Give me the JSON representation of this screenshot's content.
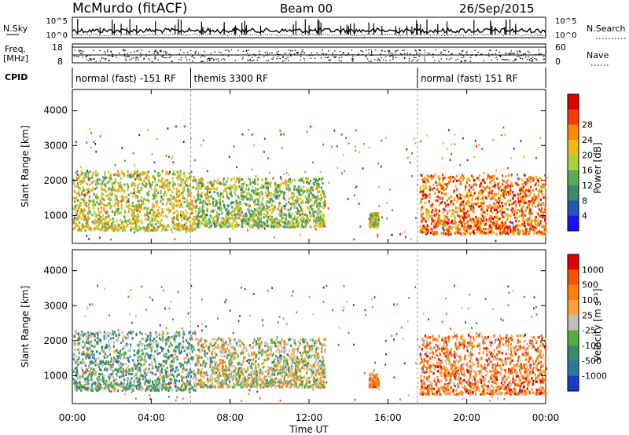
{
  "header": {
    "station": "McMurdo (fitACF)",
    "beam": "Beam 00",
    "date": "26/Sep/2015"
  },
  "top_panels": {
    "nsky_label": "N.Sky",
    "nsky_ticks": [
      "10^5",
      "10^0"
    ],
    "nsearch_label": "N.Search",
    "nsearch_ticks": [
      "10^5",
      "10^0"
    ],
    "freq_label": "Freq.",
    "freq_unit": "[MHz]",
    "freq_ticks": [
      "18",
      "8"
    ],
    "nave_label": "Nave",
    "nave_ticks": [
      "60",
      "0"
    ],
    "cpid_label": "CPID",
    "cpid_segments": [
      {
        "label": "normal (fast) -151 RF",
        "start_hr": 0,
        "end_hr": 6
      },
      {
        "label": "themis 3300 RF",
        "start_hr": 6,
        "end_hr": 17.5
      },
      {
        "label": "normal (fast) 151 RF",
        "start_hr": 17.5,
        "end_hr": 24
      }
    ]
  },
  "chart_data": [
    {
      "type": "heatmap",
      "name": "power",
      "ylabel": "Slant Range [km]",
      "yticks": [
        "1000",
        "2000",
        "3000",
        "4000"
      ],
      "ylim": [
        200,
        4600
      ],
      "colorbar_label": "Power [dB]",
      "colorbar_ticks": [
        "4",
        "8",
        "12",
        "16",
        "20",
        "24",
        "28"
      ],
      "colorbar_colors": [
        "#1a10ff",
        "#2255b8",
        "#3c8a6e",
        "#5aaa55",
        "#a8d23a",
        "#f0b81a",
        "#ff8a00",
        "#ff3a00",
        "#e00000"
      ],
      "echo_regions": [
        {
          "t0": 0.0,
          "t1": 6.2,
          "r0": 600,
          "r1": 2300,
          "level": 0.55
        },
        {
          "t0": 6.2,
          "t1": 12.8,
          "r0": 700,
          "r1": 2100,
          "level": 0.45
        },
        {
          "t0": 15.0,
          "t1": 15.5,
          "r0": 700,
          "r1": 1100,
          "level": 0.5
        },
        {
          "t0": 17.6,
          "t1": 24.0,
          "r0": 500,
          "r1": 2200,
          "level": 0.8
        }
      ]
    },
    {
      "type": "heatmap",
      "name": "velocity",
      "ylabel": "Slant Range [km]",
      "yticks": [
        "1000",
        "2000",
        "3000",
        "4000"
      ],
      "ylim": [
        200,
        4600
      ],
      "colorbar_label": "Velocity [m s⁻¹]",
      "colorbar_ticks": [
        "1000",
        "500",
        "100",
        "25",
        "-25",
        "-100",
        "-500",
        "-1000"
      ],
      "colorbar_colors": [
        "#1b3acb",
        "#2a7a9a",
        "#3c8a6e",
        "#5aaa40",
        "#bfbfbf",
        "#ffa040",
        "#ff8000",
        "#ff5000",
        "#e00000"
      ],
      "echo_regions": [
        {
          "t0": 0.0,
          "t1": 6.2,
          "r0": 600,
          "r1": 2300,
          "level": 0.35
        },
        {
          "t0": 6.2,
          "t1": 12.8,
          "r0": 700,
          "r1": 2100,
          "level": 0.5
        },
        {
          "t0": 15.0,
          "t1": 15.5,
          "r0": 700,
          "r1": 1100,
          "level": 0.7
        },
        {
          "t0": 17.6,
          "t1": 24.0,
          "r0": 500,
          "r1": 2200,
          "level": 0.75
        }
      ]
    }
  ],
  "x_axis": {
    "label": "Time UT",
    "ticks": [
      "00:00",
      "04:00",
      "08:00",
      "12:00",
      "16:00",
      "20:00",
      "00:00"
    ],
    "range_hr": [
      0,
      24
    ]
  }
}
